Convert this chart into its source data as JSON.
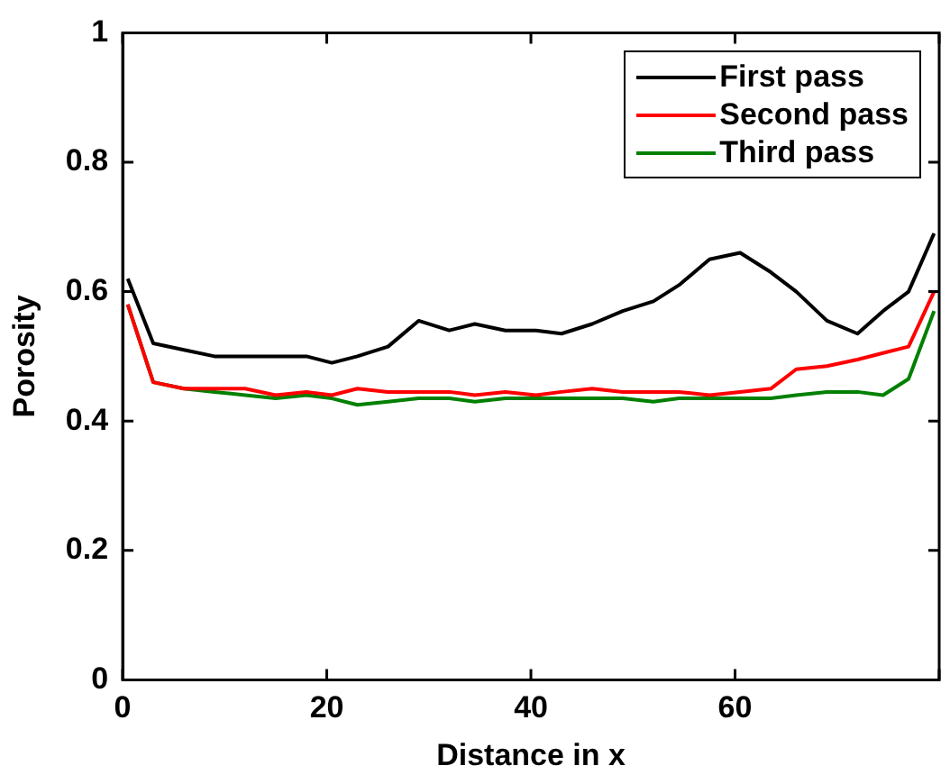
{
  "chart_data": {
    "type": "line",
    "xlabel": "Distance in x",
    "ylabel": "Porosity",
    "x": [
      0.5,
      3,
      6,
      9,
      12,
      15,
      18,
      20.5,
      23,
      26,
      29,
      32,
      34.5,
      37.5,
      40.5,
      43,
      46,
      49,
      52,
      54.5,
      57.5,
      60.5,
      63.5,
      66,
      69,
      72,
      74.5,
      77,
      79.5
    ],
    "series": [
      {
        "name": "First pass",
        "color": "#000000",
        "values": [
          0.62,
          0.52,
          0.51,
          0.5,
          0.5,
          0.5,
          0.5,
          0.49,
          0.5,
          0.515,
          0.555,
          0.54,
          0.55,
          0.54,
          0.54,
          0.535,
          0.55,
          0.57,
          0.585,
          0.61,
          0.65,
          0.66,
          0.63,
          0.6,
          0.555,
          0.535,
          0.57,
          0.6,
          0.69
        ]
      },
      {
        "name": "Second pass",
        "color": "#ff0000",
        "values": [
          0.58,
          0.46,
          0.45,
          0.45,
          0.45,
          0.44,
          0.445,
          0.44,
          0.45,
          0.445,
          0.445,
          0.445,
          0.44,
          0.445,
          0.44,
          0.445,
          0.45,
          0.445,
          0.445,
          0.445,
          0.44,
          0.445,
          0.45,
          0.48,
          0.485,
          0.495,
          0.505,
          0.515,
          0.6
        ]
      },
      {
        "name": "Third pass",
        "color": "#008000",
        "values": [
          0.58,
          0.46,
          0.45,
          0.445,
          0.44,
          0.435,
          0.44,
          0.435,
          0.425,
          0.43,
          0.435,
          0.435,
          0.43,
          0.435,
          0.435,
          0.435,
          0.435,
          0.435,
          0.43,
          0.435,
          0.435,
          0.435,
          0.435,
          0.44,
          0.445,
          0.445,
          0.44,
          0.465,
          0.57
        ]
      }
    ],
    "xlim": [
      0,
      80
    ],
    "xticks": [
      0,
      20,
      40,
      60,
      {
        "value": 80,
        "label": null
      }
    ],
    "ylim": [
      0,
      1
    ],
    "yticks": [
      0,
      0.2,
      0.4,
      0.6,
      0.8,
      1
    ],
    "grid": false,
    "legend": "top right",
    "marker": "none",
    "line_style": "solid"
  }
}
